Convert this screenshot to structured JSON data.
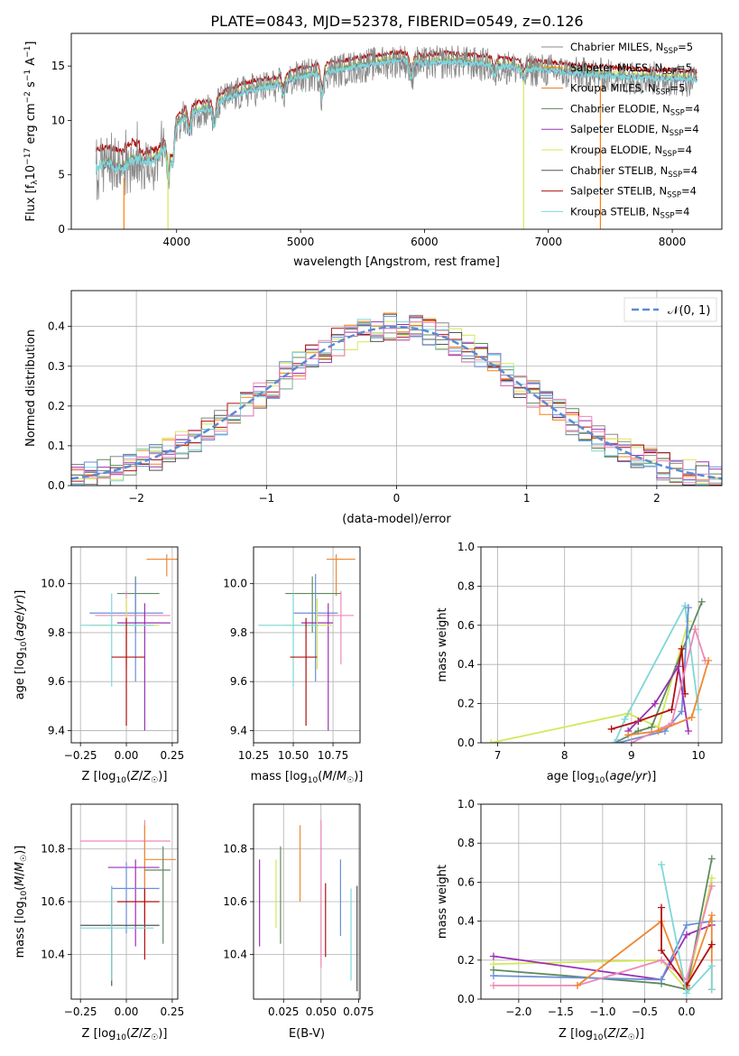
{
  "page": {
    "title": "PLATE=0843, MJD=52378, FIBERID=0549, z=0.126"
  },
  "palette": {
    "chabrier_miles": "#888888",
    "salpeter_miles": "#ff7f0e",
    "kroupa_miles": "#e07b1a",
    "chabrier_elodie": "#5f8a5f",
    "salpeter_elodie": "#9b30b5",
    "kroupa_elodie": "#d2e85a",
    "chabrier_stelib": "#555555",
    "salpeter_stelib": "#b01010",
    "kroupa_stelib": "#7fd7d7",
    "blue": "#6b8fd8",
    "pink": "#ee88b8",
    "orange": "#ee8833",
    "gauss": "#5b8bd4"
  },
  "chart_data": [
    {
      "id": "spectrum",
      "type": "line",
      "title": "PLATE=0843, MJD=52378, FIBERID=0549, z=0.126",
      "xlabel": "wavelength [Angstrom, rest frame]",
      "ylabel": "Flux [f_λ 10^-17 erg cm^-2 s^-1 A^-1]",
      "xlim": [
        3150,
        8400
      ],
      "ylim": [
        0,
        18
      ],
      "xticks": [
        4000,
        5000,
        6000,
        7000,
        8000
      ],
      "yticks": [
        0,
        5,
        10,
        15
      ],
      "grid": false,
      "legend": "top-right",
      "legend_entries": [
        {
          "text": "Chabrier MILES, N",
          "sub": "SSP",
          "suffix": "=5",
          "color_key": "chabrier_miles"
        },
        {
          "text": "Salpeter MILES, N",
          "sub": "SSP",
          "suffix": "=5",
          "color_key": "salpeter_miles"
        },
        {
          "text": "Kroupa MILES, N",
          "sub": "SSP",
          "suffix": "=5",
          "color_key": "kroupa_miles"
        },
        {
          "text": "Chabrier ELODIE, N",
          "sub": "SSP",
          "suffix": "=4",
          "color_key": "chabrier_elodie"
        },
        {
          "text": "Salpeter ELODIE, N",
          "sub": "SSP",
          "suffix": "=4",
          "color_key": "salpeter_elodie"
        },
        {
          "text": "Kroupa ELODIE, N",
          "sub": "SSP",
          "suffix": "=4",
          "color_key": "kroupa_elodie"
        },
        {
          "text": "Chabrier STELIB, N",
          "sub": "SSP",
          "suffix": "=4",
          "color_key": "chabrier_stelib"
        },
        {
          "text": "Salpeter STELIB, N",
          "sub": "SSP",
          "suffix": "=4",
          "color_key": "salpeter_stelib"
        },
        {
          "text": "Kroupa STELIB, N",
          "sub": "SSP",
          "suffix": "=4",
          "color_key": "kroupa_stelib"
        }
      ],
      "continuum": [
        [
          3350,
          5.6
        ],
        [
          3450,
          6.0
        ],
        [
          3550,
          5.5
        ],
        [
          3650,
          6.5
        ],
        [
          3750,
          6.2
        ],
        [
          3850,
          6.5
        ],
        [
          3950,
          8.5
        ],
        [
          4000,
          9.6
        ],
        [
          4100,
          10.7
        ],
        [
          4250,
          11.0
        ],
        [
          4400,
          12.0
        ],
        [
          4600,
          12.8
        ],
        [
          4800,
          13.2
        ],
        [
          5000,
          14.0
        ],
        [
          5200,
          14.4
        ],
        [
          5400,
          14.8
        ],
        [
          5600,
          15.2
        ],
        [
          5800,
          15.5
        ],
        [
          6000,
          15.2
        ],
        [
          6200,
          15.4
        ],
        [
          6400,
          15.2
        ],
        [
          6600,
          15.0
        ],
        [
          6800,
          14.7
        ],
        [
          7000,
          14.6
        ],
        [
          7200,
          14.3
        ],
        [
          7400,
          14.2
        ],
        [
          7600,
          14.0
        ],
        [
          7800,
          13.9
        ],
        [
          8000,
          13.8
        ],
        [
          8200,
          13.7
        ]
      ],
      "absorption_features": [
        {
          "x": 3934,
          "depth": 3.5
        },
        {
          "x": 3969,
          "depth": 3.0
        },
        {
          "x": 4102,
          "depth": 2.0
        },
        {
          "x": 4304,
          "depth": 2.0
        },
        {
          "x": 4861,
          "depth": 1.2
        },
        {
          "x": 5175,
          "depth": 2.2
        },
        {
          "x": 5893,
          "depth": 1.6
        },
        {
          "x": 6563,
          "depth": 1.0
        },
        {
          "x": 6800,
          "depth": 1.0
        }
      ],
      "spikes": [
        {
          "x": 3930,
          "ylow": 0,
          "color_key": "kroupa_elodie"
        },
        {
          "x": 3575,
          "ylow": 0,
          "color_key": "salpeter_miles"
        },
        {
          "x": 6800,
          "ylow": 0,
          "color_key": "kroupa_elodie"
        },
        {
          "x": 7420,
          "ylow": 0,
          "color_key": "salpeter_miles"
        }
      ]
    },
    {
      "id": "residuals",
      "type": "histogram",
      "xlabel": "(data-model)/error",
      "ylabel": "Normed distribution",
      "xlim": [
        -2.5,
        2.5
      ],
      "ylim": [
        0,
        0.49
      ],
      "xticks": [
        -2,
        -1,
        0,
        1,
        2
      ],
      "yticks": [
        0.0,
        0.1,
        0.2,
        0.3,
        0.4
      ],
      "grid": true,
      "legend": "top-right",
      "gauss_label": "𝒩(0, 1)",
      "bin_width": 0.1
    },
    {
      "id": "age_vs_Z",
      "type": "errorbar",
      "xlabel": "Z [log10(Z/Z☉)]",
      "ylabel": "age [log10(age/yr)]",
      "xlim": [
        -0.3,
        0.28
      ],
      "ylim": [
        9.35,
        10.15
      ],
      "xticks": [
        -0.25,
        0.0,
        0.25
      ],
      "yticks": [
        9.4,
        9.6,
        9.8,
        10.0
      ],
      "grid": true,
      "points": [
        {
          "x": 0.22,
          "xlo": 0.11,
          "xhi": 0.32,
          "y": 10.1,
          "ylo": 10.03,
          "yhi": 10.12,
          "color_key": "orange"
        },
        {
          "x": 0.05,
          "xlo": -0.05,
          "xhi": 0.18,
          "y": 9.96,
          "ylo": 9.8,
          "yhi": 10.03,
          "color_key": "chabrier_elodie"
        },
        {
          "x": 0.05,
          "xlo": -0.2,
          "xhi": 0.2,
          "y": 9.88,
          "ylo": 9.6,
          "yhi": 10.02,
          "color_key": "blue"
        },
        {
          "x": 0.0,
          "xlo": -0.17,
          "xhi": 0.24,
          "y": 9.87,
          "ylo": 9.67,
          "yhi": 9.97,
          "color_key": "pink"
        },
        {
          "x": 0.1,
          "xlo": -0.05,
          "xhi": 0.24,
          "y": 9.84,
          "ylo": 9.4,
          "yhi": 9.92,
          "color_key": "salpeter_elodie"
        },
        {
          "x": 0.0,
          "xlo": -0.2,
          "xhi": 0.18,
          "y": 9.83,
          "ylo": 9.65,
          "yhi": 9.94,
          "color_key": "kroupa_elodie"
        },
        {
          "x": -0.08,
          "xlo": -0.25,
          "xhi": 0.15,
          "y": 9.83,
          "ylo": 9.58,
          "yhi": 9.96,
          "color_key": "kroupa_stelib"
        },
        {
          "x": 0.0,
          "xlo": -0.08,
          "xhi": 0.1,
          "y": 9.7,
          "ylo": 9.42,
          "yhi": 9.86,
          "color_key": "salpeter_stelib"
        }
      ]
    },
    {
      "id": "age_vs_mass",
      "type": "errorbar",
      "xlabel": "mass [log10(M/M☉)]",
      "ylabel": "",
      "xlim": [
        10.25,
        10.92
      ],
      "ylim": [
        9.35,
        10.15
      ],
      "xticks": [
        10.25,
        10.5,
        10.75
      ],
      "yticks": [
        9.4,
        9.6,
        9.8,
        10.0
      ],
      "grid": true,
      "points": [
        {
          "x": 10.77,
          "xlo": 10.71,
          "xhi": 10.89,
          "y": 10.1,
          "ylo": 9.95,
          "yhi": 10.12,
          "color_key": "orange"
        },
        {
          "x": 10.62,
          "xlo": 10.45,
          "xhi": 10.8,
          "y": 9.96,
          "ylo": 9.8,
          "yhi": 10.03,
          "color_key": "chabrier_elodie"
        },
        {
          "x": 10.64,
          "xlo": 10.5,
          "xhi": 10.78,
          "y": 9.88,
          "ylo": 9.6,
          "yhi": 10.04,
          "color_key": "blue"
        },
        {
          "x": 10.8,
          "xlo": 10.65,
          "xhi": 10.88,
          "y": 9.87,
          "ylo": 9.67,
          "yhi": 9.97,
          "color_key": "pink"
        },
        {
          "x": 10.72,
          "xlo": 10.55,
          "xhi": 10.75,
          "y": 9.84,
          "ylo": 9.4,
          "yhi": 9.92,
          "color_key": "salpeter_elodie"
        },
        {
          "x": 10.65,
          "xlo": 10.45,
          "xhi": 10.74,
          "y": 9.83,
          "ylo": 9.65,
          "yhi": 9.94,
          "color_key": "kroupa_elodie"
        },
        {
          "x": 10.5,
          "xlo": 10.28,
          "xhi": 10.66,
          "y": 9.83,
          "ylo": 9.58,
          "yhi": 9.96,
          "color_key": "kroupa_stelib"
        },
        {
          "x": 10.58,
          "xlo": 10.48,
          "xhi": 10.65,
          "y": 9.7,
          "ylo": 9.42,
          "yhi": 9.86,
          "color_key": "salpeter_stelib"
        }
      ]
    },
    {
      "id": "weight_vs_age",
      "type": "line",
      "xlabel": "age [log10(age/yr)]",
      "ylabel": "mass weight",
      "xlim": [
        6.75,
        10.35
      ],
      "ylim": [
        0,
        1.0
      ],
      "xticks": [
        7,
        8,
        9,
        10
      ],
      "yticks": [
        0.0,
        0.2,
        0.4,
        0.6,
        0.8,
        1.0
      ],
      "grid": true,
      "series": [
        {
          "color_key": "kroupa_elodie",
          "points": [
            [
              6.9,
              0.0
            ],
            [
              8.95,
              0.15
            ],
            [
              9.4,
              0.08
            ],
            [
              9.85,
              0.62
            ]
          ]
        },
        {
          "color_key": "chabrier_elodie",
          "points": [
            [
              8.75,
              0.0
            ],
            [
              9.1,
              0.06
            ],
            [
              9.3,
              0.08
            ],
            [
              10.05,
              0.72
            ]
          ]
        },
        {
          "color_key": "kroupa_stelib",
          "points": [
            [
              8.75,
              0.0
            ],
            [
              8.9,
              0.12
            ],
            [
              9.8,
              0.7
            ],
            [
              10.0,
              0.17
            ]
          ]
        },
        {
          "color_key": "blue",
          "points": [
            [
              8.8,
              0.0
            ],
            [
              9.5,
              0.06
            ],
            [
              9.75,
              0.16
            ],
            [
              9.85,
              0.69
            ]
          ]
        },
        {
          "color_key": "salpeter_stelib",
          "points": [
            [
              8.7,
              0.07
            ],
            [
              9.1,
              0.11
            ],
            [
              9.6,
              0.17
            ],
            [
              9.75,
              0.48
            ],
            [
              9.8,
              0.25
            ]
          ]
        },
        {
          "color_key": "salpeter_elodie",
          "points": [
            [
              8.95,
              0.06
            ],
            [
              9.35,
              0.2
            ],
            [
              9.7,
              0.39
            ],
            [
              9.85,
              0.06
            ]
          ]
        },
        {
          "color_key": "pink",
          "points": [
            [
              9.0,
              0.0
            ],
            [
              9.6,
              0.1
            ],
            [
              9.95,
              0.58
            ],
            [
              10.1,
              0.42
            ]
          ]
        },
        {
          "color_key": "orange",
          "points": [
            [
              8.95,
              0.04
            ],
            [
              9.4,
              0.06
            ],
            [
              9.9,
              0.13
            ],
            [
              10.15,
              0.42
            ]
          ]
        }
      ]
    },
    {
      "id": "mass_vs_Z",
      "type": "errorbar",
      "xlabel": "Z [log10(Z/Z☉)]",
      "ylabel": "mass [log10(M/M☉)]",
      "xlim": [
        -0.3,
        0.28
      ],
      "ylim": [
        10.23,
        10.97
      ],
      "xticks": [
        -0.25,
        0.0,
        0.25
      ],
      "yticks": [
        10.4,
        10.6,
        10.8
      ],
      "grid": true,
      "points": [
        {
          "x": 0.1,
          "xlo": -0.25,
          "xhi": 0.24,
          "y": 10.83,
          "ylo": 10.6,
          "yhi": 10.91,
          "color_key": "pink"
        },
        {
          "x": 0.1,
          "xlo": 0.1,
          "xhi": 0.27,
          "y": 10.76,
          "ylo": 10.52,
          "yhi": 10.89,
          "color_key": "orange"
        },
        {
          "x": 0.05,
          "xlo": -0.1,
          "xhi": 0.18,
          "y": 10.73,
          "ylo": 10.43,
          "yhi": 10.76,
          "color_key": "salpeter_elodie"
        },
        {
          "x": 0.2,
          "xlo": 0.1,
          "xhi": 0.24,
          "y": 10.72,
          "ylo": 10.44,
          "yhi": 10.81,
          "color_key": "chabrier_elodie"
        },
        {
          "x": 0.0,
          "xlo": -0.08,
          "xhi": 0.18,
          "y": 10.65,
          "ylo": 10.48,
          "yhi": 10.75,
          "color_key": "blue"
        },
        {
          "x": 0.1,
          "xlo": -0.05,
          "xhi": 0.18,
          "y": 10.6,
          "ylo": 10.38,
          "yhi": 10.65,
          "color_key": "salpeter_stelib"
        },
        {
          "x": -0.08,
          "xlo": -0.25,
          "xhi": 0.18,
          "y": 10.51,
          "ylo": 10.28,
          "yhi": 10.66,
          "color_key": "chabrier_stelib"
        },
        {
          "x": -0.08,
          "xlo": -0.25,
          "xhi": 0.15,
          "y": 10.5,
          "ylo": 10.3,
          "yhi": 10.66,
          "color_key": "kroupa_stelib"
        }
      ]
    },
    {
      "id": "mass_vs_ebv",
      "type": "errorbar",
      "xlabel": "E(B-V)",
      "ylabel": "",
      "xlim": [
        0.005,
        0.076
      ],
      "ylim": [
        10.23,
        10.97
      ],
      "xticks": [
        0.025,
        0.05,
        0.075
      ],
      "yticks": [
        10.4,
        10.6,
        10.8
      ],
      "grid": true,
      "points": [
        {
          "x": 0.009,
          "ylo": 10.43,
          "yhi": 10.76,
          "color_key": "salpeter_elodie"
        },
        {
          "x": 0.02,
          "ylo": 10.5,
          "yhi": 10.76,
          "color_key": "kroupa_elodie"
        },
        {
          "x": 0.023,
          "ylo": 10.44,
          "yhi": 10.81,
          "color_key": "chabrier_elodie"
        },
        {
          "x": 0.036,
          "ylo": 10.6,
          "yhi": 10.89,
          "color_key": "orange"
        },
        {
          "x": 0.05,
          "ylo": 10.35,
          "yhi": 10.91,
          "color_key": "pink"
        },
        {
          "x": 0.053,
          "ylo": 10.39,
          "yhi": 10.67,
          "color_key": "salpeter_stelib"
        },
        {
          "x": 0.063,
          "ylo": 10.47,
          "yhi": 10.76,
          "color_key": "blue"
        },
        {
          "x": 0.07,
          "ylo": 10.3,
          "yhi": 10.65,
          "color_key": "kroupa_stelib"
        },
        {
          "x": 0.074,
          "ylo": 10.26,
          "yhi": 10.66,
          "color_key": "chabrier_stelib"
        }
      ]
    },
    {
      "id": "weight_vs_Z",
      "type": "line",
      "xlabel": "Z [log10(Z/Z☉)]",
      "ylabel": "mass weight",
      "xlim": [
        -2.45,
        0.42
      ],
      "ylim": [
        0,
        1.0
      ],
      "xticks": [
        -2.0,
        -1.5,
        -1.0,
        -0.5,
        0.0
      ],
      "yticks": [
        0.0,
        0.2,
        0.4,
        0.6,
        0.8,
        1.0
      ],
      "grid": true,
      "series": [
        {
          "color_key": "kroupa_elodie",
          "points": [
            [
              -2.3,
              0.18
            ],
            [
              -0.3,
              0.2
            ],
            [
              0.0,
              0.05
            ],
            [
              0.3,
              0.62
            ]
          ]
        },
        {
          "color_key": "salpeter_elodie",
          "points": [
            [
              -2.3,
              0.22
            ],
            [
              -0.3,
              0.1
            ],
            [
              0.0,
              0.33
            ],
            [
              0.3,
              0.38
            ]
          ]
        },
        {
          "color_key": "chabrier_elodie",
          "points": [
            [
              -2.3,
              0.15
            ],
            [
              -0.3,
              0.08
            ],
            [
              0.0,
              0.05
            ],
            [
              0.3,
              0.72
            ]
          ]
        },
        {
          "color_key": "blue",
          "points": [
            [
              -2.3,
              0.12
            ],
            [
              -0.3,
              0.1
            ],
            [
              0.0,
              0.38
            ],
            [
              0.3,
              0.4
            ]
          ]
        },
        {
          "color_key": "pink",
          "points": [
            [
              -2.3,
              0.07
            ],
            [
              -1.3,
              0.07
            ],
            [
              -0.3,
              0.2
            ],
            [
              0.0,
              0.1
            ],
            [
              0.3,
              0.58
            ]
          ]
        },
        {
          "color_key": "orange",
          "points": [
            [
              -1.3,
              0.07
            ],
            [
              -0.3,
              0.4
            ],
            [
              0.0,
              0.06
            ],
            [
              0.3,
              0.43
            ],
            [
              0.3,
              0.05
            ]
          ]
        },
        {
          "color_key": "salpeter_stelib",
          "points": [
            [
              -0.3,
              0.47
            ],
            [
              -0.3,
              0.25
            ],
            [
              0.0,
              0.07
            ],
            [
              0.3,
              0.28
            ]
          ]
        },
        {
          "color_key": "kroupa_stelib",
          "points": [
            [
              -0.3,
              0.69
            ],
            [
              0.0,
              0.03
            ],
            [
              0.3,
              0.17
            ],
            [
              0.3,
              0.05
            ]
          ]
        }
      ]
    }
  ]
}
